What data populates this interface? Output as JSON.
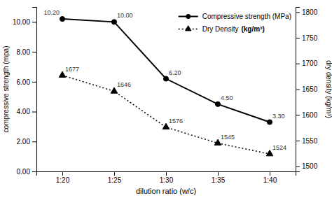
{
  "chart_data": {
    "type": "line",
    "xlabel": "dilution ratio (w/c)",
    "ylabel": "compressive strength (mpa)",
    "y2label": "dry density (kg/m³)",
    "categories": [
      "1:20",
      "1:25",
      "1:30",
      "1:35",
      "1:40"
    ],
    "series": [
      {
        "name": "Compressive strength (MPa)",
        "color": "#000000",
        "marker": "circle",
        "line_style": "solid",
        "values": [
          10.2,
          10.0,
          6.2,
          4.5,
          3.3
        ],
        "value_labels": [
          "10.20",
          "10.00",
          "6.20",
          "4.50",
          "3.30"
        ]
      },
      {
        "name": "Dry Density",
        "color": "#000000",
        "marker": "triangle",
        "line_style": "dotted",
        "axis": "y2",
        "values": [
          1677,
          1646,
          1576,
          1545,
          1524
        ]
      }
    ],
    "ylim": [
      0,
      11
    ],
    "yticks": [
      {
        "value": 0,
        "label": "0.00"
      },
      {
        "value": 2,
        "label": "2.00"
      },
      {
        "value": 4,
        "label": "4.00"
      },
      {
        "value": 6,
        "label": "6.00"
      },
      {
        "value": 8,
        "label": "8.00"
      },
      {
        "value": 10,
        "label": "10.00"
      }
    ],
    "y2lim": [
      1490,
      1810
    ],
    "y2ticks": [
      1500,
      1550,
      1600,
      1650,
      1700,
      1750,
      1800
    ],
    "data_labels": true,
    "grid": false,
    "legend": "upper right",
    "annotations": [
      "(kg/m³)"
    ]
  }
}
